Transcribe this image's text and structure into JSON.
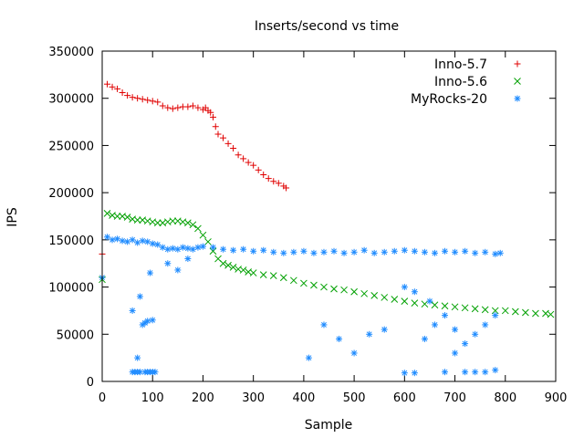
{
  "chart_data": {
    "type": "scatter",
    "title": "Inserts/second vs time",
    "xlabel": "Sample",
    "ylabel": "IPS",
    "xlim": [
      0,
      900
    ],
    "ylim": [
      0,
      350000
    ],
    "xticks": [
      0,
      100,
      200,
      300,
      400,
      500,
      600,
      700,
      800,
      900
    ],
    "yticks": [
      0,
      50000,
      100000,
      150000,
      200000,
      250000,
      300000,
      350000
    ],
    "xtick_labels": [
      "0",
      "100",
      "200",
      "300",
      "400",
      "500",
      "600",
      "700",
      "800",
      "900"
    ],
    "ytick_labels": [
      "0",
      "50000",
      "100000",
      "150000",
      "200000",
      "250000",
      "300000",
      "350000"
    ],
    "grid": false,
    "legend_position": "top-right",
    "series": [
      {
        "name": "Inno-5.7",
        "marker": "plus",
        "color": "#e00000",
        "x": [
          0,
          10,
          20,
          30,
          40,
          50,
          60,
          70,
          80,
          90,
          100,
          110,
          120,
          130,
          140,
          150,
          160,
          170,
          180,
          190,
          200,
          205,
          210,
          215,
          220,
          225,
          230,
          240,
          250,
          260,
          270,
          280,
          290,
          300,
          310,
          320,
          330,
          340,
          350,
          360,
          365
        ],
        "y": [
          135000,
          315000,
          312000,
          310000,
          306000,
          303000,
          301000,
          300000,
          299000,
          298000,
          297000,
          296000,
          292000,
          290000,
          289000,
          290000,
          291000,
          291000,
          292000,
          290000,
          288000,
          290000,
          287000,
          285000,
          280000,
          270000,
          262000,
          258000,
          252000,
          247000,
          240000,
          236000,
          232000,
          229000,
          224000,
          219000,
          215000,
          212000,
          210000,
          207000,
          205000
        ]
      },
      {
        "name": "Inno-5.6",
        "marker": "cross",
        "color": "#00a000",
        "x": [
          0,
          10,
          20,
          30,
          40,
          50,
          60,
          70,
          80,
          90,
          100,
          110,
          120,
          130,
          140,
          150,
          160,
          170,
          180,
          190,
          200,
          210,
          220,
          230,
          240,
          250,
          260,
          270,
          280,
          290,
          300,
          320,
          340,
          360,
          380,
          400,
          420,
          440,
          460,
          480,
          500,
          520,
          540,
          560,
          580,
          600,
          620,
          640,
          660,
          680,
          700,
          720,
          740,
          760,
          780,
          800,
          820,
          840,
          860,
          880,
          890
        ],
        "y": [
          108000,
          178000,
          176000,
          175000,
          175000,
          174000,
          172000,
          171000,
          171000,
          170000,
          169000,
          168000,
          168000,
          169000,
          170000,
          170000,
          169000,
          168000,
          166000,
          162000,
          155000,
          148000,
          138000,
          130000,
          125000,
          123000,
          121000,
          119000,
          118000,
          116000,
          115000,
          113000,
          112000,
          110000,
          107000,
          104000,
          102000,
          100000,
          98000,
          97000,
          95000,
          93000,
          91000,
          89000,
          87000,
          85000,
          83000,
          82000,
          81000,
          80000,
          79000,
          78000,
          77000,
          76000,
          75000,
          75000,
          74000,
          73000,
          72000,
          72000,
          71000
        ]
      },
      {
        "name": "MyRocks-20",
        "marker": "star",
        "color": "#1e8bff",
        "x": [
          0,
          10,
          20,
          30,
          40,
          50,
          60,
          70,
          80,
          90,
          100,
          110,
          120,
          130,
          140,
          150,
          160,
          170,
          180,
          190,
          200,
          220,
          240,
          260,
          280,
          300,
          320,
          340,
          360,
          380,
          400,
          420,
          440,
          460,
          480,
          500,
          520,
          540,
          560,
          580,
          600,
          620,
          640,
          660,
          680,
          700,
          720,
          740,
          760,
          780,
          790,
          60,
          65,
          70,
          75,
          85,
          90,
          95,
          100,
          105,
          100,
          80,
          85,
          90,
          70,
          60,
          75,
          95,
          130,
          150,
          170,
          410,
          440,
          470,
          500,
          530,
          560,
          600,
          620,
          640,
          660,
          680,
          700,
          720,
          740,
          760,
          780,
          600,
          620,
          650,
          680,
          700,
          720,
          740,
          760,
          780
        ],
        "y": [
          110000,
          153000,
          150000,
          151000,
          149000,
          148000,
          150000,
          147000,
          149000,
          148000,
          146000,
          145000,
          142000,
          140000,
          141000,
          140000,
          142000,
          141000,
          140000,
          142000,
          143000,
          142000,
          140000,
          139000,
          140000,
          138000,
          139000,
          137000,
          136000,
          137000,
          138000,
          136000,
          137000,
          138000,
          136000,
          137000,
          139000,
          136000,
          137000,
          138000,
          139000,
          138000,
          137000,
          136000,
          138000,
          137000,
          138000,
          136000,
          137000,
          135000,
          136000,
          10000,
          10000,
          10000,
          10000,
          10000,
          10000,
          10000,
          10000,
          10000,
          65000,
          60000,
          62000,
          64000,
          25000,
          75000,
          90000,
          115000,
          125000,
          118000,
          130000,
          25000,
          60000,
          45000,
          30000,
          50000,
          55000,
          9000,
          9000,
          45000,
          60000,
          10000,
          30000,
          10000,
          10000,
          10000,
          12000,
          100000,
          95000,
          85000,
          70000,
          55000,
          40000,
          50000,
          60000,
          70000
        ]
      }
    ]
  }
}
